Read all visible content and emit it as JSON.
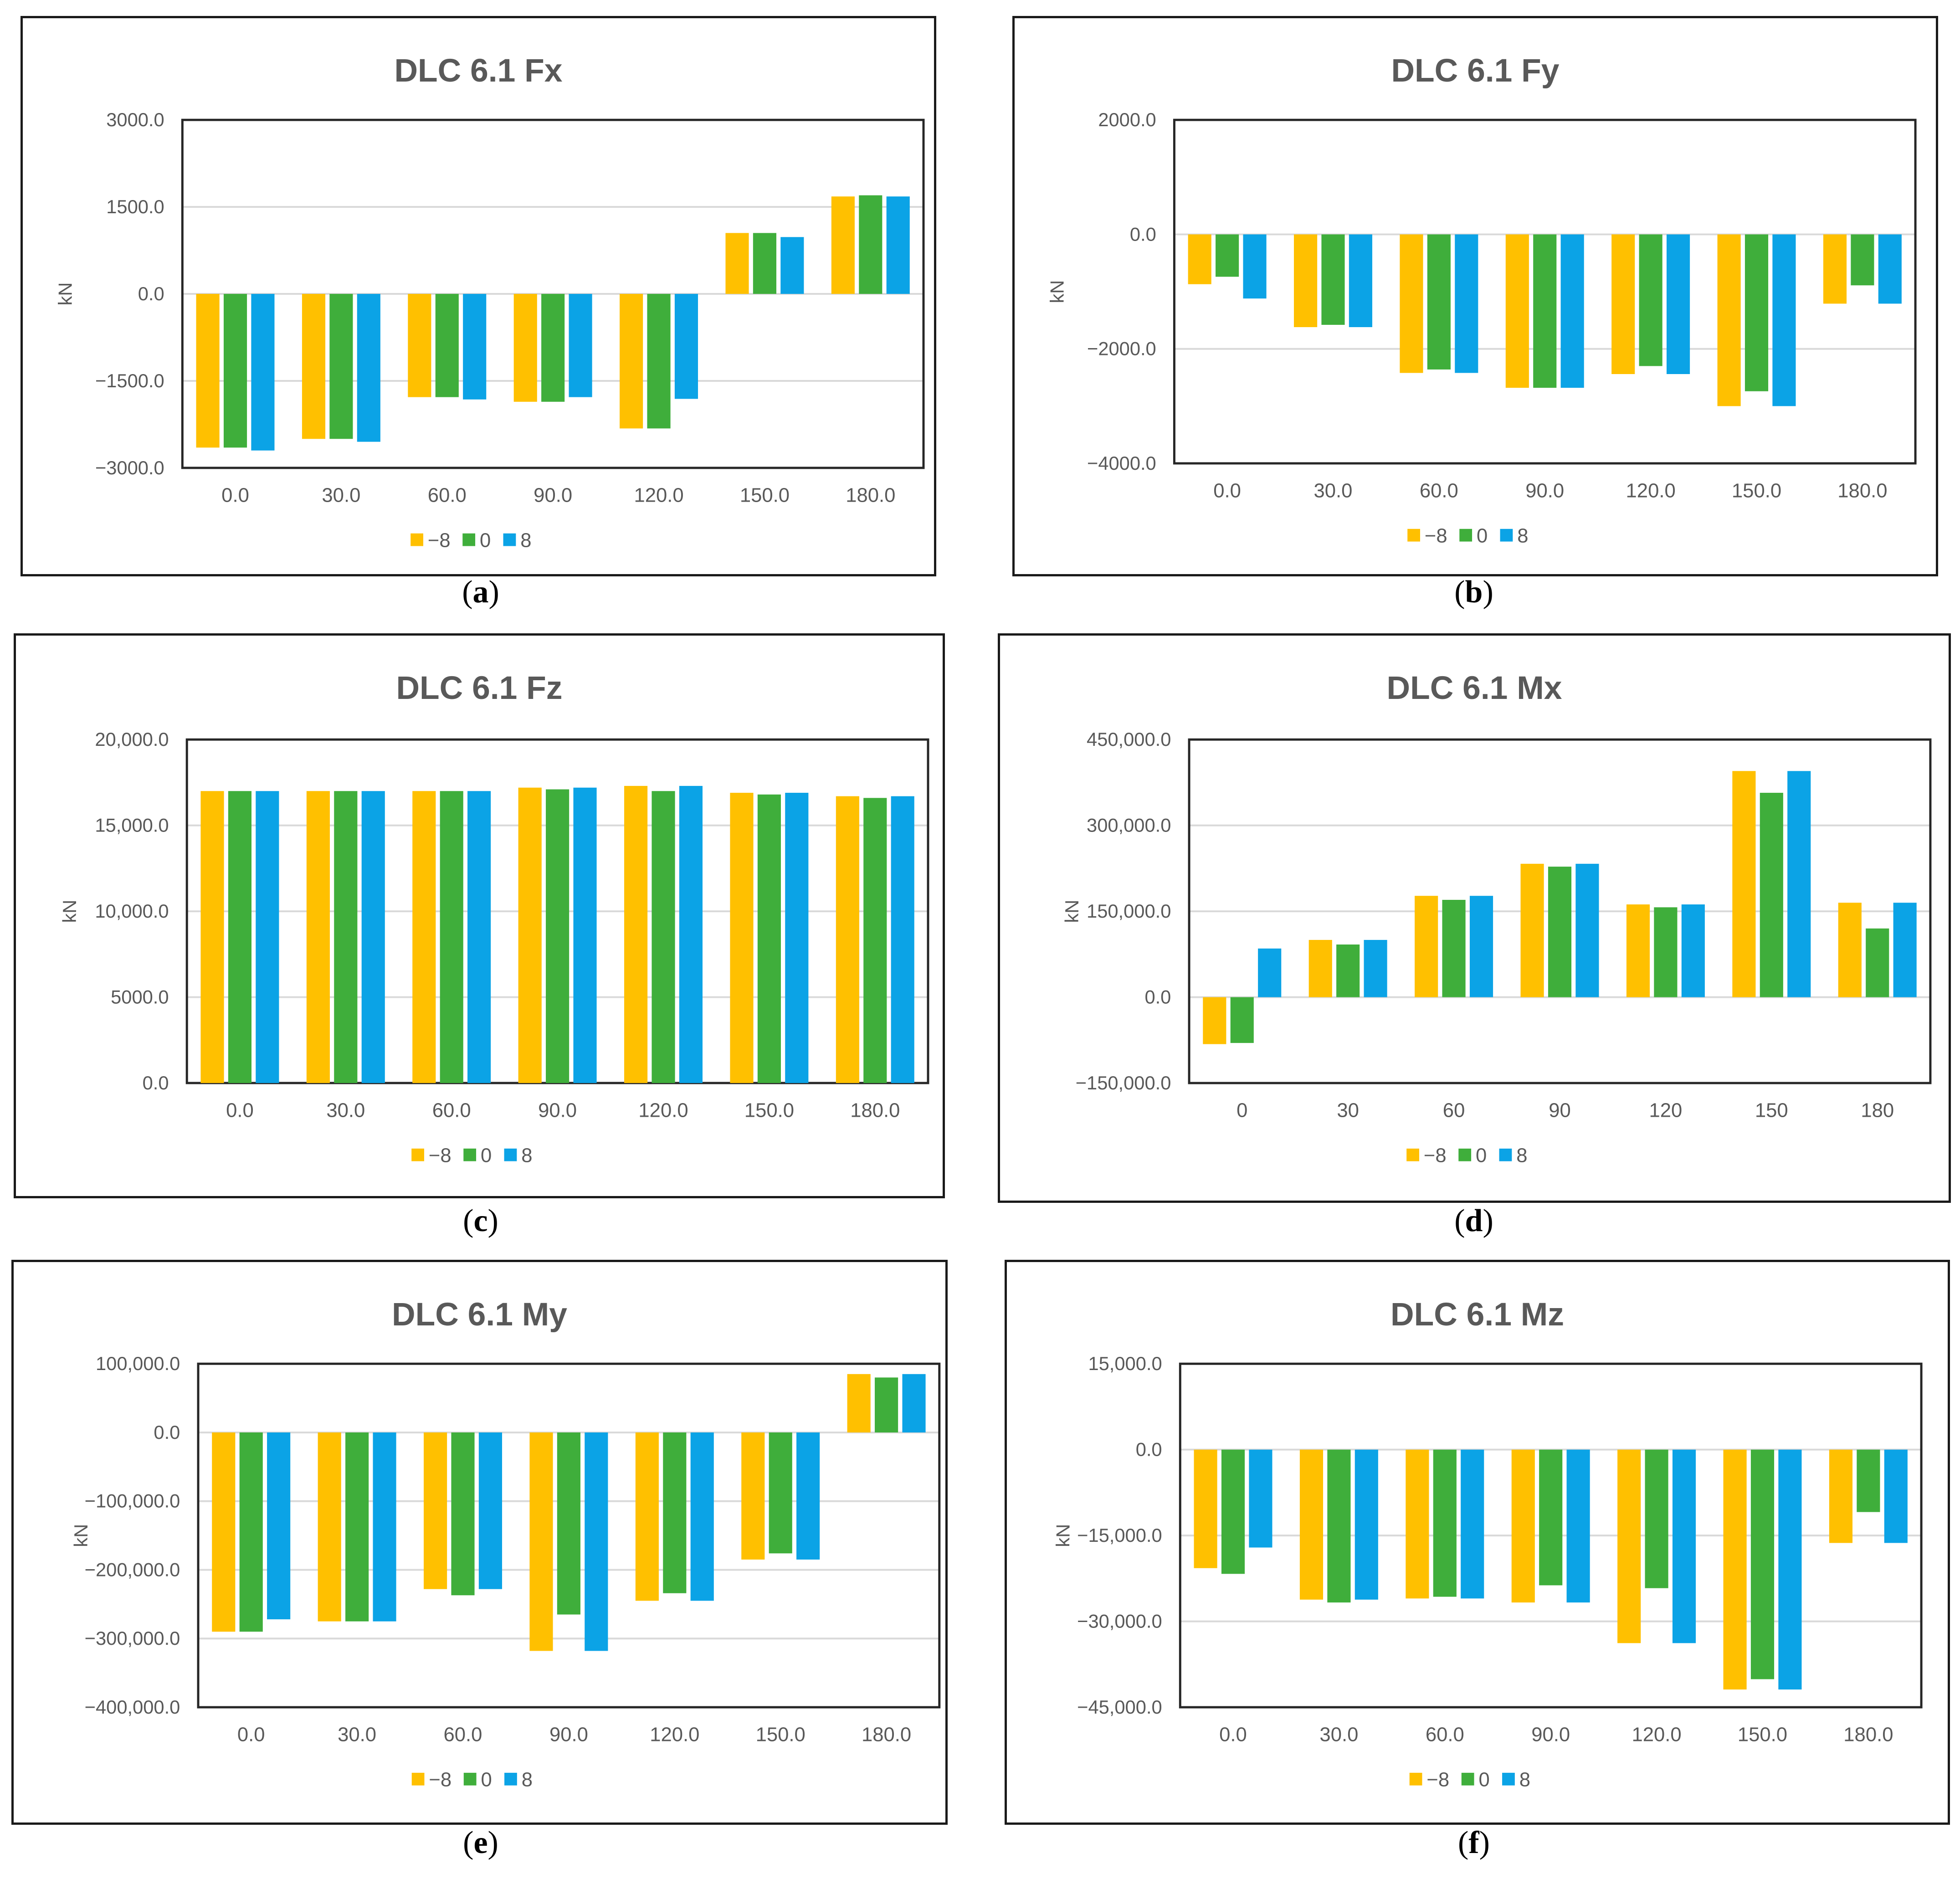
{
  "colors": {
    "neg8": "#FFC000",
    "zero": "#3FAE3B",
    "pos8": "#0BA3E6",
    "text": "#595959",
    "grid": "#D9D9D9",
    "axis": "#262626"
  },
  "legend_labels": [
    "−8",
    "0",
    "8"
  ],
  "panels": [
    {
      "letter": "a",
      "title": "DLC 6.1 Fx",
      "chart_data": {
        "type": "bar",
        "ylabel": "kN",
        "categories": [
          "0.0",
          "30.0",
          "60.0",
          "90.0",
          "120.0",
          "150.0",
          "180.0"
        ],
        "yticks": [
          "3000.0",
          "1500.0",
          "0.0",
          "−1500.0",
          "−3000.0"
        ],
        "ylim": [
          -3000,
          3000
        ],
        "series": [
          {
            "name": "−8",
            "values": [
              -2650,
              -2500,
              -1780,
              -1860,
              -2320,
              1050,
              1680
            ]
          },
          {
            "name": "0",
            "values": [
              -2650,
              -2500,
              -1780,
              -1860,
              -2320,
              1050,
              1700
            ]
          },
          {
            "name": "8",
            "values": [
              -2700,
              -2550,
              -1820,
              -1780,
              -1810,
              980,
              1680
            ]
          }
        ]
      }
    },
    {
      "letter": "b",
      "title": "DLC 6.1 Fy",
      "chart_data": {
        "type": "bar",
        "ylabel": "kN",
        "categories": [
          "0.0",
          "30.0",
          "60.0",
          "90.0",
          "120.0",
          "150.0",
          "180.0"
        ],
        "yticks": [
          "2000.0",
          "0.0",
          "−2000.0",
          "−4000.0"
        ],
        "ylim": [
          -4000,
          2000
        ],
        "series": [
          {
            "name": "−8",
            "values": [
              -870,
              -1620,
              -2420,
              -2680,
              -2440,
              -3000,
              -1210
            ]
          },
          {
            "name": "0",
            "values": [
              -740,
              -1580,
              -2360,
              -2680,
              -2300,
              -2740,
              -890
            ]
          },
          {
            "name": "8",
            "values": [
              -1120,
              -1620,
              -2420,
              -2680,
              -2440,
              -3000,
              -1210
            ]
          }
        ]
      }
    },
    {
      "letter": "c",
      "title": "DLC 6.1 Fz",
      "chart_data": {
        "type": "bar",
        "ylabel": "kN",
        "categories": [
          "0.0",
          "30.0",
          "60.0",
          "90.0",
          "120.0",
          "150.0",
          "180.0"
        ],
        "yticks": [
          "20,000.0",
          "15,000.0",
          "10,000.0",
          "5000.0",
          "0.0"
        ],
        "ylim": [
          0,
          20000
        ],
        "series": [
          {
            "name": "−8",
            "values": [
              17000,
              17000,
              17000,
              17200,
              17300,
              16900,
              16700
            ]
          },
          {
            "name": "0",
            "values": [
              17000,
              17000,
              17000,
              17100,
              17000,
              16800,
              16600
            ]
          },
          {
            "name": "8",
            "values": [
              17000,
              17000,
              17000,
              17200,
              17300,
              16900,
              16700
            ]
          }
        ]
      }
    },
    {
      "letter": "d",
      "title": "DLC 6.1 Mx",
      "chart_data": {
        "type": "bar",
        "ylabel": "kN",
        "categories": [
          "0",
          "30",
          "60",
          "90",
          "120",
          "150",
          "180"
        ],
        "yticks": [
          "450,000.0",
          "300,000.0",
          "150,000.0",
          "0.0",
          "−150,000.0"
        ],
        "ylim": [
          -150000,
          450000
        ],
        "series": [
          {
            "name": "−8",
            "values": [
              -82000,
              100000,
              177000,
              233000,
              162000,
              395000,
              165000
            ]
          },
          {
            "name": "0",
            "values": [
              -80000,
              92000,
              170000,
              228000,
              157000,
              357000,
              120000
            ]
          },
          {
            "name": "8",
            "values": [
              85000,
              100000,
              177000,
              233000,
              162000,
              395000,
              165000
            ]
          }
        ]
      }
    },
    {
      "letter": "e",
      "title": "DLC 6.1 My",
      "chart_data": {
        "type": "bar",
        "ylabel": "kN",
        "categories": [
          "0.0",
          "30.0",
          "60.0",
          "90.0",
          "120.0",
          "150.0",
          "180.0"
        ],
        "yticks": [
          "100,000.0",
          "0.0",
          "−100,000.0",
          "−200,000.0",
          "−300,000.0",
          "−400,000.0"
        ],
        "ylim": [
          -400000,
          100000
        ],
        "series": [
          {
            "name": "−8",
            "values": [
              -290000,
              -275000,
              -228000,
              -318000,
              -245000,
              -185000,
              85000
            ]
          },
          {
            "name": "0",
            "values": [
              -290000,
              -275000,
              -237000,
              -265000,
              -234000,
              -176000,
              80000
            ]
          },
          {
            "name": "8",
            "values": [
              -272000,
              -275000,
              -228000,
              -318000,
              -245000,
              -185000,
              85000
            ]
          }
        ]
      }
    },
    {
      "letter": "f",
      "title": "DLC 6.1 Mz",
      "chart_data": {
        "type": "bar",
        "ylabel": "kN",
        "categories": [
          "0.0",
          "30.0",
          "60.0",
          "90.0",
          "120.0",
          "150.0",
          "180.0"
        ],
        "yticks": [
          "15,000.0",
          "0.0",
          "−15,000.0",
          "−30,000.0",
          "−45,000.0"
        ],
        "ylim": [
          -45000,
          15000
        ],
        "series": [
          {
            "name": "−8",
            "values": [
              -20700,
              -26200,
              -26000,
              -26700,
              -33800,
              -41900,
              -16300
            ]
          },
          {
            "name": "0",
            "values": [
              -21700,
              -26700,
              -25700,
              -23700,
              -24200,
              -40100,
              -10900
            ]
          },
          {
            "name": "8",
            "values": [
              -17100,
              -26200,
              -26000,
              -26700,
              -33800,
              -41900,
              -16300
            ]
          }
        ]
      }
    }
  ]
}
